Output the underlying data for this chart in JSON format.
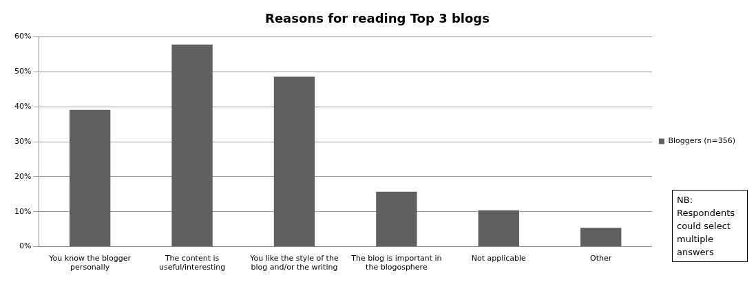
{
  "chart_data": {
    "type": "bar",
    "title": "Reasons for reading Top 3 blogs",
    "categories": [
      "You know the blogger personally",
      "The content is useful/interesting",
      "You like the style of the blog and/or the writing",
      "The blog is important in the blogosphere",
      "Not applicable",
      "Other"
    ],
    "series": [
      {
        "name": "Bloggers (n=356)",
        "color": "#606060",
        "values": [
          39.1,
          57.8,
          48.6,
          15.7,
          10.4,
          5.4
        ]
      }
    ],
    "ylim": [
      0,
      60
    ],
    "yticks": [
      {
        "value": 0,
        "label": "0%"
      },
      {
        "value": 10,
        "label": "10%"
      },
      {
        "value": 20,
        "label": "20%"
      },
      {
        "value": 30,
        "label": "30%"
      },
      {
        "value": 40,
        "label": "40%"
      },
      {
        "value": 50,
        "label": "50%"
      },
      {
        "value": 60,
        "label": "60%"
      }
    ],
    "grid": "y",
    "legend": "right",
    "annotations": [
      "NB: Respondents could select multiple answers"
    ]
  }
}
